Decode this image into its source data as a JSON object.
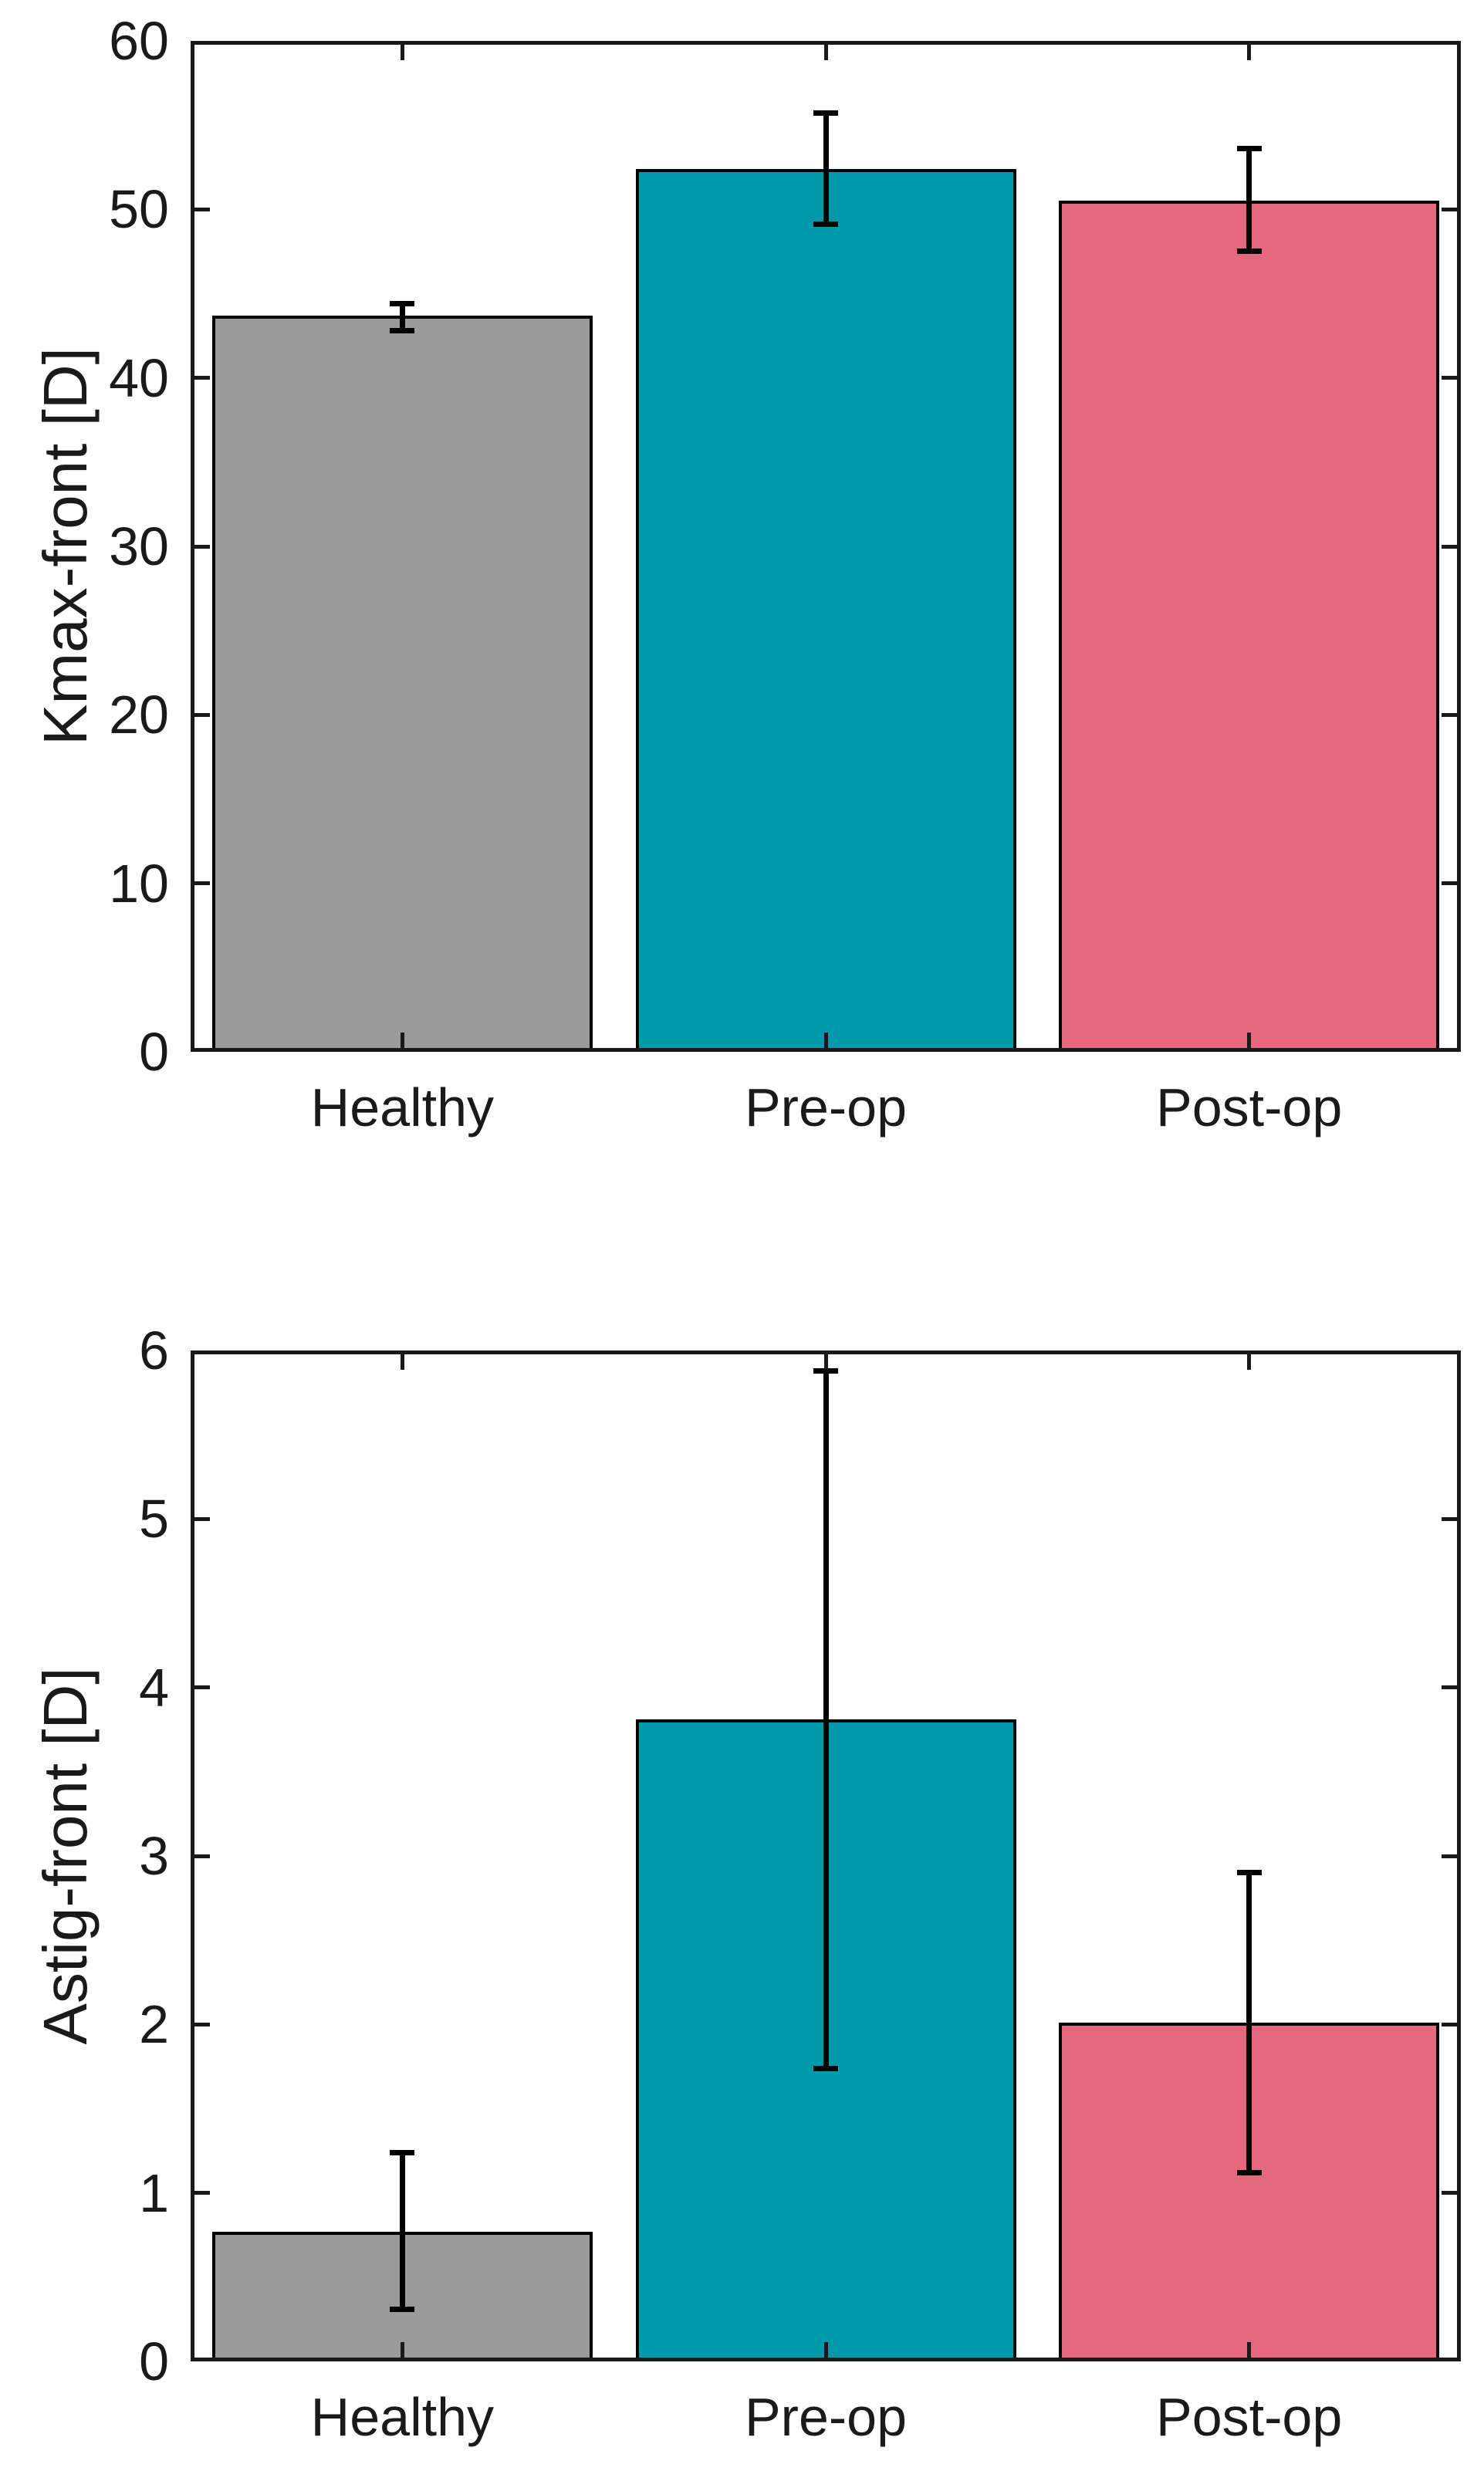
{
  "figure": {
    "background_color": "#ffffff",
    "axis_color": "#1a1a1a",
    "error_bar_color": "#000000",
    "bar_edge_color": "#000000"
  },
  "chart_data": [
    {
      "type": "bar",
      "title": "",
      "xlabel": "",
      "ylabel": "Kmax-front [D]",
      "categories": [
        "Healthy",
        "Pre-op",
        "Post-op"
      ],
      "values": [
        43.7,
        52.4,
        50.5
      ],
      "error_low": [
        42.8,
        49.1,
        47.5
      ],
      "error_high": [
        44.4,
        55.7,
        53.6
      ],
      "ylim": [
        0,
        60
      ],
      "yticks": [
        0,
        10,
        20,
        30,
        40,
        50,
        60
      ],
      "bar_colors": [
        "#9A9A9A",
        "#0098AB",
        "#E5697E"
      ],
      "grid": false,
      "legend": null
    },
    {
      "type": "bar",
      "title": "",
      "xlabel": "",
      "ylabel": "Astig-front [D]",
      "categories": [
        "Healthy",
        "Pre-op",
        "Post-op"
      ],
      "values": [
        0.77,
        3.81,
        2.01
      ],
      "error_low": [
        0.31,
        1.74,
        1.12
      ],
      "error_high": [
        1.24,
        5.88,
        2.9
      ],
      "ylim": [
        0,
        6
      ],
      "yticks": [
        0,
        1,
        2,
        3,
        4,
        5,
        6
      ],
      "bar_colors": [
        "#9A9A9A",
        "#0098AB",
        "#E5697E"
      ],
      "grid": false,
      "legend": null
    }
  ]
}
